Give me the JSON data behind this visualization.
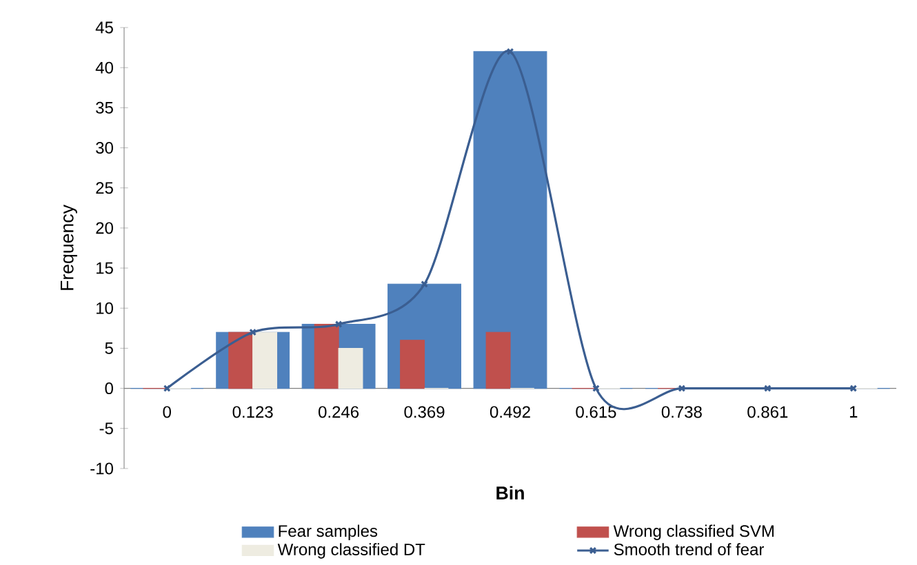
{
  "chart_data": {
    "type": "bar",
    "xlabel": "Bin",
    "ylabel": "Frequency",
    "categories": [
      "0",
      "0.123",
      "0.246",
      "0.369",
      "0.492",
      "0.615",
      "0.738",
      "0.861",
      "1"
    ],
    "series": [
      {
        "name": "Fear samples",
        "color": "#4f81bd",
        "values": [
          0,
          7,
          8,
          13,
          42,
          0,
          0,
          0,
          0
        ]
      },
      {
        "name": "Wrong classified SVM",
        "color": "#c0504d",
        "values": [
          0,
          7,
          8,
          6,
          7,
          0,
          0,
          0,
          0
        ]
      },
      {
        "name": "Wrong classified DT",
        "color": "#eeece1",
        "values": [
          0,
          7,
          5,
          0,
          0,
          0,
          0,
          0,
          0
        ]
      },
      {
        "name": "Smooth trend of fear",
        "type": "line",
        "color": "#3b5e91",
        "marker": "cross",
        "values": [
          0,
          7,
          8,
          13,
          42,
          0,
          0,
          0,
          0
        ]
      }
    ],
    "ylim": [
      -10,
      45
    ],
    "yticks": [
      -10,
      -5,
      0,
      5,
      10,
      15,
      20,
      25,
      30,
      35,
      40,
      45
    ],
    "grid": false,
    "legend": "bottom"
  }
}
